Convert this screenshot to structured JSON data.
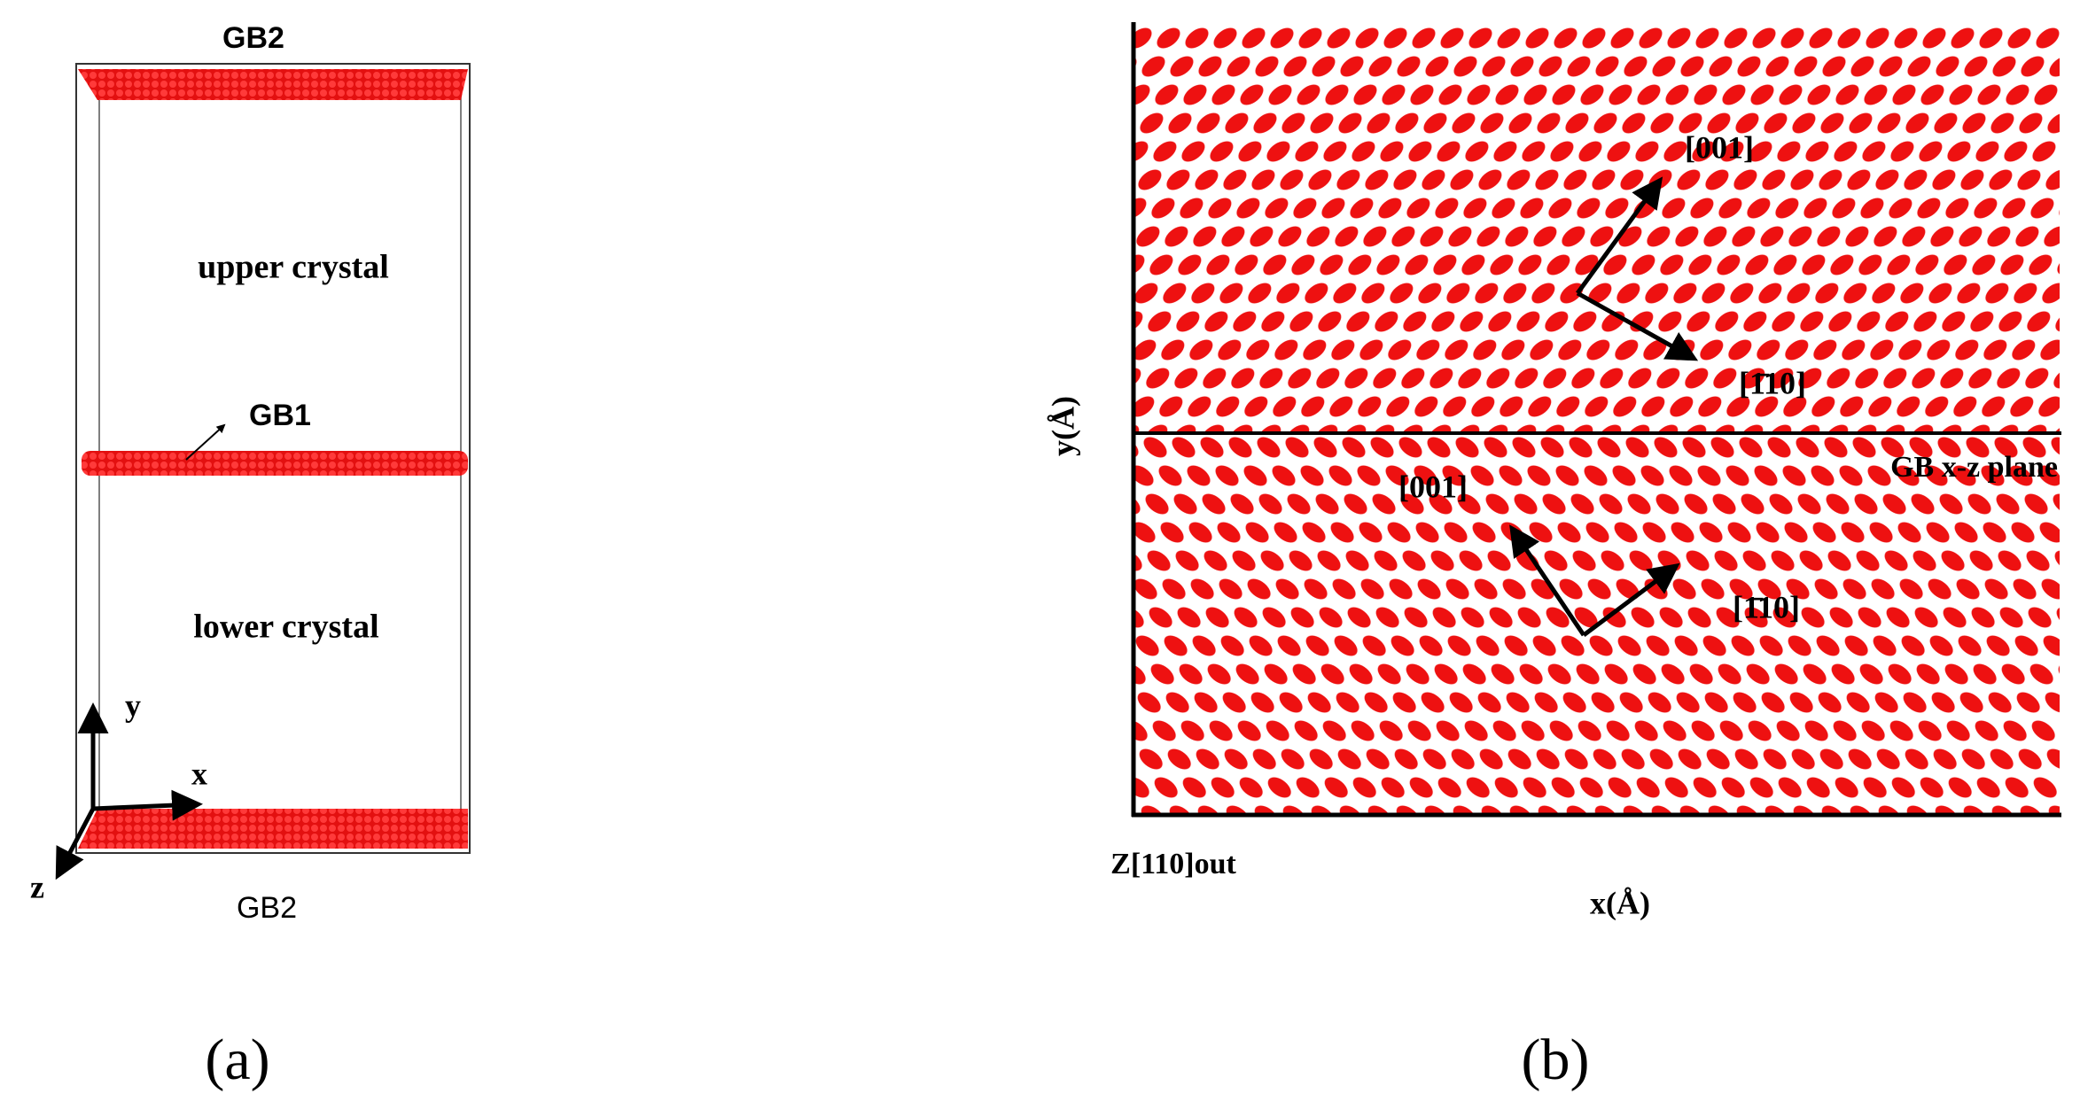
{
  "panel_a": {
    "top_label": "GB2",
    "upper": "upper crystal",
    "middle_label": "GB1",
    "lower": "lower crystal",
    "axis_y": "y",
    "axis_x": "x",
    "axis_z": "z",
    "bottom_label": "GB2",
    "caption": "(a)"
  },
  "panel_b": {
    "upper_dir1": "[001]",
    "upper_dir2": "[1̄10]",
    "plane_label": "GB x-z plane",
    "lower_dir1": "[001]",
    "lower_dir2": "[1̄10]",
    "y_axis_label": "y(Å)",
    "x_axis_label": "x(Å)",
    "z_label": "Z[110]out",
    "caption": "(b)"
  }
}
